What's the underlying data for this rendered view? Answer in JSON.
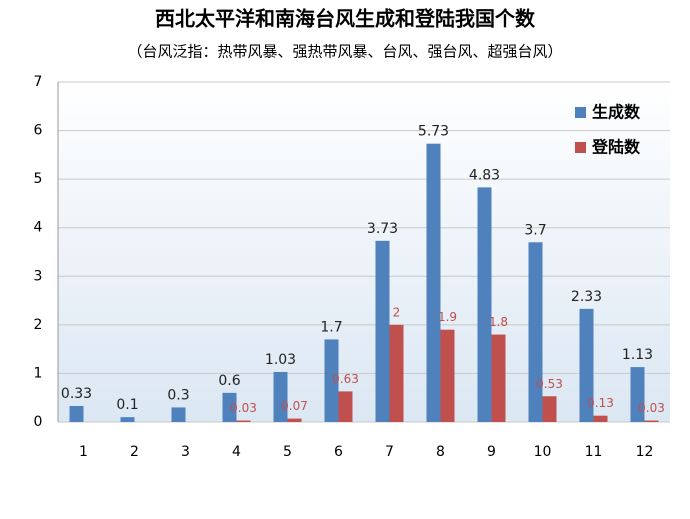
{
  "chart_data": {
    "type": "bar",
    "title": "西北太平洋和南海台风生成和登陆我国个数",
    "subtitle": "（台风泛指：热带风暴、强热带风暴、台风、强台风、超强台风）",
    "categories": [
      "1",
      "2",
      "3",
      "4",
      "5",
      "6",
      "7",
      "8",
      "9",
      "10",
      "11",
      "12"
    ],
    "series": [
      {
        "name": "生成数",
        "color": "#4f81bd",
        "values": [
          0.33,
          0.1,
          0.3,
          0.6,
          1.03,
          1.7,
          3.73,
          5.73,
          4.83,
          3.7,
          2.33,
          1.13
        ]
      },
      {
        "name": "登陆数",
        "color": "#c0504d",
        "values": [
          null,
          null,
          null,
          0.03,
          0.07,
          0.63,
          2,
          1.9,
          1.8,
          0.53,
          0.13,
          0.03
        ]
      }
    ],
    "ylim": [
      0,
      7
    ],
    "yticks": [
      0,
      1,
      2,
      3,
      4,
      5,
      6,
      7
    ],
    "grid": true,
    "legend": "top-right"
  }
}
